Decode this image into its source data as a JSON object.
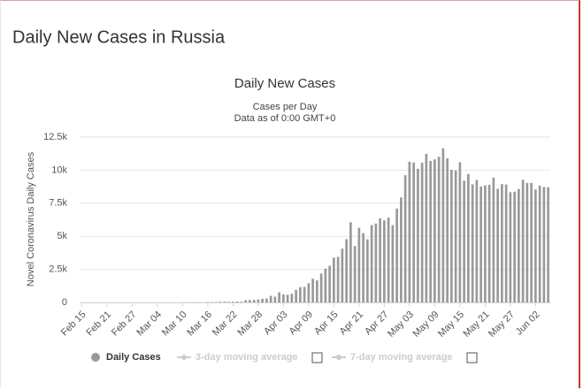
{
  "page_title": "Daily New Cases in Russia",
  "chart_data": {
    "type": "bar",
    "title": "Daily New Cases",
    "subtitle": [
      "Cases per Day",
      "Data as of 0:00 GMT+0"
    ],
    "y_label": "Novel Coronavirus Daily Cases",
    "categories": [
      "Feb 15",
      null,
      null,
      null,
      null,
      null,
      "Feb 21",
      null,
      null,
      null,
      null,
      null,
      "Feb 27",
      null,
      null,
      null,
      null,
      null,
      "Mar 04",
      null,
      null,
      null,
      null,
      null,
      "Mar 10",
      null,
      null,
      null,
      null,
      null,
      "Mar 16",
      null,
      null,
      null,
      null,
      null,
      "Mar 22",
      null,
      null,
      null,
      null,
      null,
      "Mar 28",
      null,
      null,
      null,
      null,
      null,
      "Apr 03",
      null,
      null,
      null,
      null,
      null,
      "Apr 09",
      null,
      null,
      null,
      null,
      null,
      "Apr 15",
      null,
      null,
      null,
      null,
      null,
      "Apr 21",
      null,
      null,
      null,
      null,
      null,
      "Apr 27",
      null,
      null,
      null,
      null,
      null,
      "May 03",
      null,
      null,
      null,
      null,
      null,
      "May 09",
      null,
      null,
      null,
      null,
      null,
      "May 15",
      null,
      null,
      null,
      null,
      null,
      "May 21",
      null,
      null,
      null,
      null,
      null,
      "May 27",
      null,
      null,
      null,
      null,
      null,
      "Jun 02",
      null,
      null,
      null
    ],
    "series": [
      {
        "name": "Daily Cases",
        "color": "#999999",
        "visible": true,
        "values": [
          0,
          0,
          0,
          0,
          0,
          0,
          0,
          0,
          0,
          0,
          0,
          0,
          0,
          0,
          0,
          0,
          1,
          0,
          0,
          1,
          6,
          0,
          3,
          0,
          3,
          8,
          6,
          17,
          14,
          4,
          30,
          21,
          33,
          52,
          54,
          53,
          61,
          71,
          57,
          163,
          182,
          196,
          228,
          270,
          302,
          500,
          440,
          771,
          601,
          582,
          658,
          954,
          1154,
          1175,
          1459,
          1786,
          1667,
          2186,
          2558,
          2774,
          3388,
          3448,
          4070,
          4785,
          6060,
          4268,
          5642,
          5236,
          4774,
          5849,
          5966,
          6361,
          6198,
          6411,
          5841,
          7099,
          7933,
          9623,
          10633,
          10581,
          10102,
          10559,
          11231,
          10699,
          10817,
          11012,
          11656,
          10899,
          10028,
          9974,
          10598,
          9200,
          9709,
          8926,
          9263,
          8764,
          8849,
          8894,
          9434,
          8599,
          8946,
          8915,
          8338,
          8371,
          8572,
          9268,
          9035,
          9035,
          8536,
          8831,
          8726,
          8705
        ]
      },
      {
        "name": "3-day moving average",
        "color": "#cccccc",
        "visible": false
      },
      {
        "name": "7-day moving average",
        "color": "#cccccc",
        "visible": false
      }
    ],
    "ylim": [
      0,
      12500
    ],
    "yticks": [
      0,
      {
        "value": 2500,
        "label": "2.5k"
      },
      {
        "value": 5000,
        "label": "5k"
      },
      {
        "value": 7500,
        "label": "7.5k"
      },
      {
        "value": 10000,
        "label": "10k"
      },
      {
        "value": 12500,
        "label": "12.5k"
      }
    ],
    "grid": true
  }
}
